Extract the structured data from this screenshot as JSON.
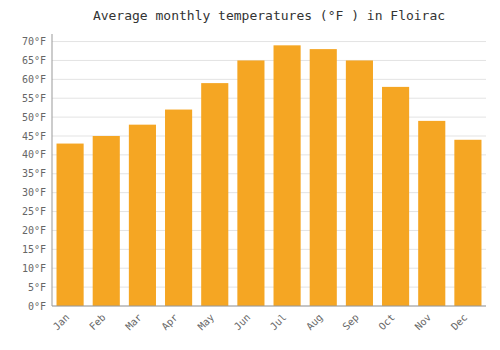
{
  "chart_data": {
    "type": "bar",
    "title": "Average monthly temperatures (°F ) in Floirac",
    "categories": [
      "Jan",
      "Feb",
      "Mar",
      "Apr",
      "May",
      "Jun",
      "Jul",
      "Aug",
      "Sep",
      "Oct",
      "Nov",
      "Dec"
    ],
    "values": [
      43,
      45,
      48,
      52,
      59,
      65,
      69,
      68,
      65,
      58,
      49,
      44
    ],
    "color": "#F5A623",
    "ylim": [
      0,
      72
    ],
    "yticks": [
      {
        "value": 0,
        "label": "0°F"
      },
      {
        "value": 5,
        "label": "5°F"
      },
      {
        "value": 10,
        "label": "10°F"
      },
      {
        "value": 15,
        "label": "15°F"
      },
      {
        "value": 20,
        "label": "20°F"
      },
      {
        "value": 25,
        "label": "25°F"
      },
      {
        "value": 30,
        "label": "30°F"
      },
      {
        "value": 35,
        "label": "35°F"
      },
      {
        "value": 40,
        "label": "40°F"
      },
      {
        "value": 45,
        "label": "45°F"
      },
      {
        "value": 50,
        "label": "50°F"
      },
      {
        "value": 55,
        "label": "55°F"
      },
      {
        "value": 60,
        "label": "60°F"
      },
      {
        "value": 65,
        "label": "65°F"
      },
      {
        "value": 70,
        "label": "70°F"
      }
    ],
    "grid": true
  }
}
